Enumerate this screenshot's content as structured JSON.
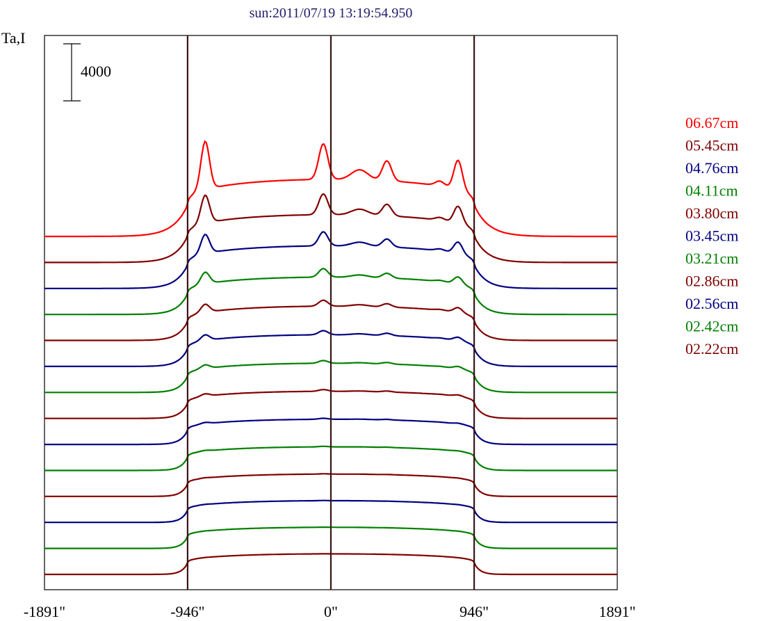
{
  "chart_data": {
    "type": "line",
    "title": "sun:2011/07/19 13:19:54.950",
    "ylabel": "Ta,I",
    "xlabel": "",
    "scale_bar_label": "4000",
    "scale_bar_value": 4000,
    "x_ticks": [
      "-1891\"",
      "-946\"",
      "0\"",
      "946\"",
      "1891\""
    ],
    "x_tick_values": [
      -1891,
      -946,
      0,
      946,
      1891
    ],
    "xlim": [
      -1891,
      1891
    ],
    "vertical_lines": [
      -946,
      0,
      946
    ],
    "vertical_line_color": "#3a1414",
    "grid": false,
    "legend_position": "right",
    "series": [
      {
        "name": "06.67cm",
        "color": "#ff0000",
        "peak_scale": 1.0
      },
      {
        "name": "05.45cm",
        "color": "#800000",
        "peak_scale": 0.8
      },
      {
        "name": "04.76cm",
        "color": "#000080",
        "peak_scale": 0.68
      },
      {
        "name": "04.11cm",
        "color": "#008000",
        "peak_scale": 0.55
      },
      {
        "name": "03.80cm",
        "color": "#800000",
        "peak_scale": 0.47
      },
      {
        "name": "03.45cm",
        "color": "#000080",
        "peak_scale": 0.4
      },
      {
        "name": "03.21cm",
        "color": "#008000",
        "peak_scale": 0.33
      },
      {
        "name": "02.86cm",
        "color": "#800000",
        "peak_scale": 0.27
      },
      {
        "name": "02.56cm",
        "color": "#000080",
        "peak_scale": 0.21
      },
      {
        "name": "02.42cm",
        "color": "#008000",
        "peak_scale": 0.16
      },
      {
        "name": "02.22cm",
        "color": "#800000",
        "peak_scale": 0.12
      },
      {
        "name": "",
        "color": "#000080",
        "peak_scale": 0.1
      },
      {
        "name": "",
        "color": "#008000",
        "peak_scale": 0.08
      },
      {
        "name": "",
        "color": "#800000",
        "peak_scale": 0.06
      }
    ],
    "features": [
      {
        "x": -830,
        "width": 28,
        "amp": 3400
      },
      {
        "x": -50,
        "width": 30,
        "amp": 2500
      },
      {
        "x": 190,
        "width": 55,
        "amp": 700
      },
      {
        "x": 370,
        "width": 30,
        "amp": 1400
      },
      {
        "x": 720,
        "width": 30,
        "amp": 350
      },
      {
        "x": 840,
        "width": 28,
        "amp": 2100
      }
    ],
    "disk_level": 4000,
    "disk_radius": 946
  }
}
